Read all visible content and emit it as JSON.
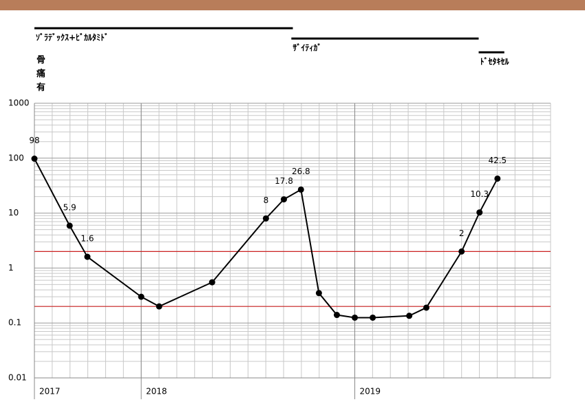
{
  "chart_data": {
    "type": "line",
    "log_scale": true,
    "grid": true,
    "color": "#000000",
    "header_color": "#b87d5a",
    "annotation": "骨痛有",
    "treatments": [
      {
        "label": "ｿﾞﾗﾃﾞｯｸｽ+ﾋﾞｶﾙﾀﾐﾄﾞ",
        "start": 2017.5,
        "end": 2018.71
      },
      {
        "label": "ｻﾞｲﾃｨｶﾞ",
        "start": 2018.703,
        "end": 2019.58
      },
      {
        "label": "ﾄﾞｾﾀｷｾﾙ",
        "start": 2019.58,
        "end": 2019.7
      }
    ],
    "reference_lines": [
      2,
      0.2
    ],
    "reference_color": "#cc2222",
    "x": [
      2017.5,
      2017.665,
      2017.748,
      2018.0,
      2018.084,
      2018.332,
      2018.584,
      2018.668,
      2018.748,
      2018.832,
      2018.916,
      2019.0,
      2019.084,
      2019.255,
      2019.335,
      2019.5,
      2019.584,
      2019.668
    ],
    "values": [
      98,
      5.9,
      1.6,
      0.3,
      0.2,
      0.55,
      8,
      17.8,
      26.8,
      0.35,
      0.14,
      0.125,
      0.125,
      0.135,
      0.19,
      2,
      10.3,
      42.5
    ],
    "value_labels": [
      "98",
      "5.9",
      "1.6",
      null,
      null,
      null,
      "8",
      "17.8",
      "26.8",
      null,
      null,
      null,
      null,
      null,
      null,
      "2",
      "10.3",
      "42.5"
    ],
    "xlim": [
      2017.5,
      2019.9167
    ],
    "xticks": [
      {
        "value": 2017.5,
        "label": "2017"
      },
      2018,
      2019
    ],
    "ylim": [
      0.01,
      1000
    ],
    "yticks": [
      0.01,
      0.1,
      1,
      10,
      100,
      1000
    ]
  }
}
